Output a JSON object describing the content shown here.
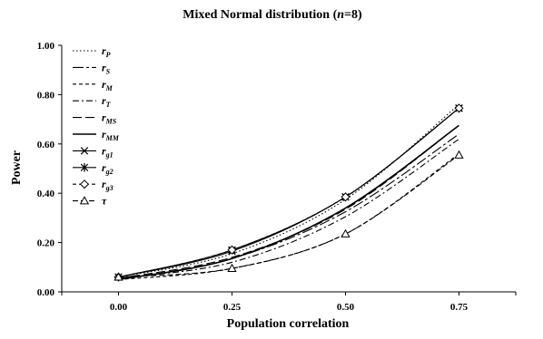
{
  "chart_data": {
    "type": "line",
    "title_main": "Mixed Normal distribution (",
    "title_var": "n",
    "title_rest": "=8)",
    "xlabel": "Population correlation",
    "ylabel": "Power",
    "categories": [
      "0.00",
      "0.25",
      "0.50",
      "0.75"
    ],
    "x": [
      0,
      0.25,
      0.5,
      0.75
    ],
    "xlim": [
      -0.125,
      0.875
    ],
    "ylim": [
      0,
      1
    ],
    "y_ticks": [
      "0.00",
      "0.20",
      "0.40",
      "0.60",
      "0.80",
      "1.00"
    ],
    "y_tick_values": [
      0,
      0.2,
      0.4,
      0.6,
      0.8,
      1.0
    ],
    "grid": false,
    "legend_position": "top-left",
    "series": [
      {
        "name": "rP",
        "base": "r",
        "sub": "P",
        "dash": "1.5,2.5",
        "marker": "none",
        "values": [
          0.06,
          0.155,
          0.375,
          0.76
        ]
      },
      {
        "name": "rS",
        "base": "r",
        "sub": "S",
        "dash": "12,3,3,3",
        "marker": "none",
        "values": [
          0.05,
          0.135,
          0.325,
          0.64
        ]
      },
      {
        "name": "rM",
        "base": "r",
        "sub": "M",
        "dash": "4,3",
        "marker": "none",
        "values": [
          0.05,
          0.095,
          0.235,
          0.56
        ]
      },
      {
        "name": "rT",
        "base": "r",
        "sub": "T",
        "dash": "7,3,2,3",
        "marker": "none",
        "values": [
          0.055,
          0.12,
          0.305,
          0.62
        ]
      },
      {
        "name": "rMS",
        "base": "r",
        "sub": "MS",
        "dash": "10,4",
        "marker": "none",
        "values": [
          0.055,
          0.14,
          0.335,
          0.675
        ]
      },
      {
        "name": "rMM",
        "base": "r",
        "sub": "MM",
        "dash": "",
        "marker": "none",
        "values": [
          0.05,
          0.135,
          0.34,
          0.675
        ]
      },
      {
        "name": "rg1",
        "base": "r",
        "sub": "g1",
        "dash": "",
        "marker": "x",
        "values": [
          0.06,
          0.165,
          0.385,
          0.745
        ]
      },
      {
        "name": "rg2",
        "base": "r",
        "sub": "g2",
        "dash": "",
        "marker": "asterisk",
        "values": [
          0.06,
          0.17,
          0.385,
          0.745
        ]
      },
      {
        "name": "rg3",
        "base": "r",
        "sub": "g3",
        "dash": "4,3",
        "marker": "diamond",
        "values": [
          0.06,
          0.17,
          0.385,
          0.745
        ]
      },
      {
        "name": "τ",
        "base": "τ",
        "sub": "",
        "dash": "6,3",
        "marker": "triangle",
        "values": [
          0.06,
          0.095,
          0.235,
          0.555
        ]
      }
    ]
  }
}
